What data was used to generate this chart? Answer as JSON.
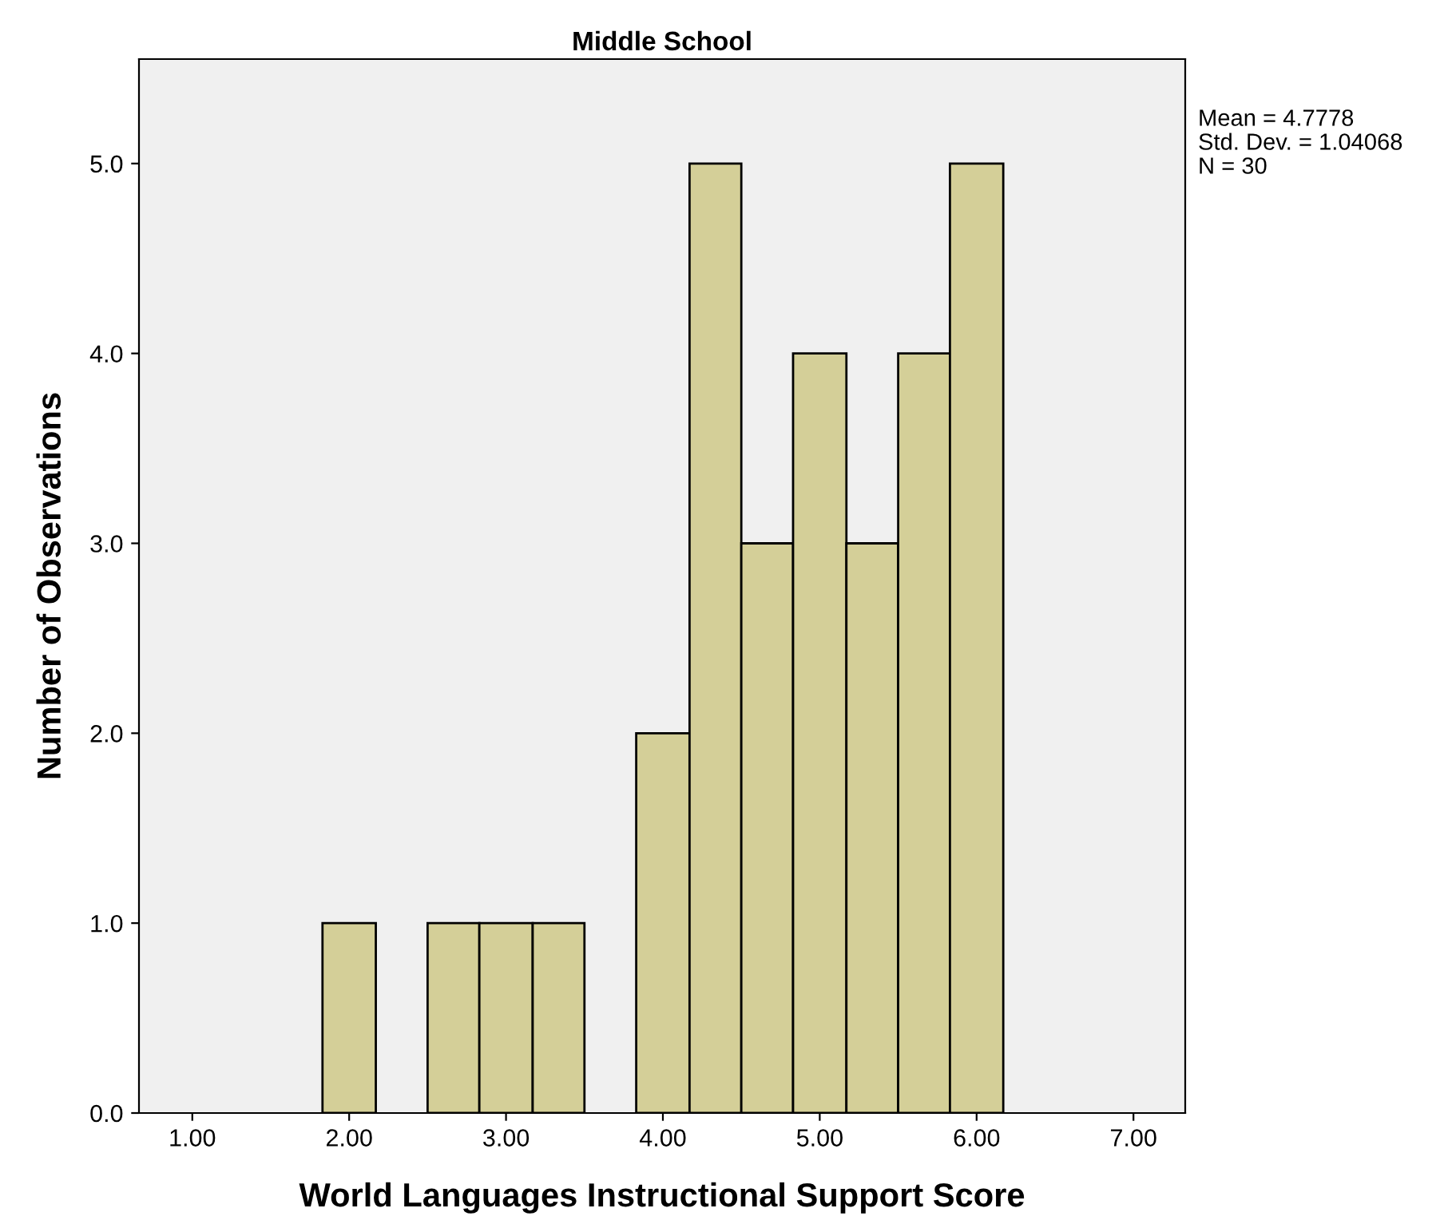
{
  "chart_data": {
    "type": "histogram",
    "title": "Middle School",
    "xlabel": "World Languages Instructional Support Score",
    "ylabel": "Number of Observations",
    "bins": [
      1.83,
      2.17,
      2.5,
      2.83,
      3.17,
      3.5,
      3.83,
      4.17,
      4.5,
      4.83,
      5.17,
      5.5,
      5.83,
      6.17
    ],
    "values": [
      1,
      0,
      1,
      1,
      1,
      0,
      2,
      5,
      3,
      4,
      3,
      4,
      5
    ],
    "color": "#d4cf98",
    "xlim": [
      0.66,
      7.33
    ],
    "ylim": [
      0,
      5.55
    ],
    "xticks": [
      {
        "value": 1,
        "label": "1.00"
      },
      {
        "value": 2,
        "label": "2.00"
      },
      {
        "value": 3,
        "label": "3.00"
      },
      {
        "value": 4,
        "label": "4.00"
      },
      {
        "value": 5,
        "label": "5.00"
      },
      {
        "value": 6,
        "label": "6.00"
      },
      {
        "value": 7,
        "label": "7.00"
      }
    ],
    "yticks": [
      {
        "value": 0,
        "label": "0.0"
      },
      {
        "value": 1,
        "label": "1.0"
      },
      {
        "value": 2,
        "label": "2.0"
      },
      {
        "value": 3,
        "label": "3.0"
      },
      {
        "value": 4,
        "label": "4.0"
      },
      {
        "value": 5,
        "label": "5.0"
      }
    ],
    "annotations": [
      "Mean = 4.7778",
      "Std. Dev. = 1.04068",
      "N = 30"
    ],
    "grid": false,
    "legend": false
  }
}
